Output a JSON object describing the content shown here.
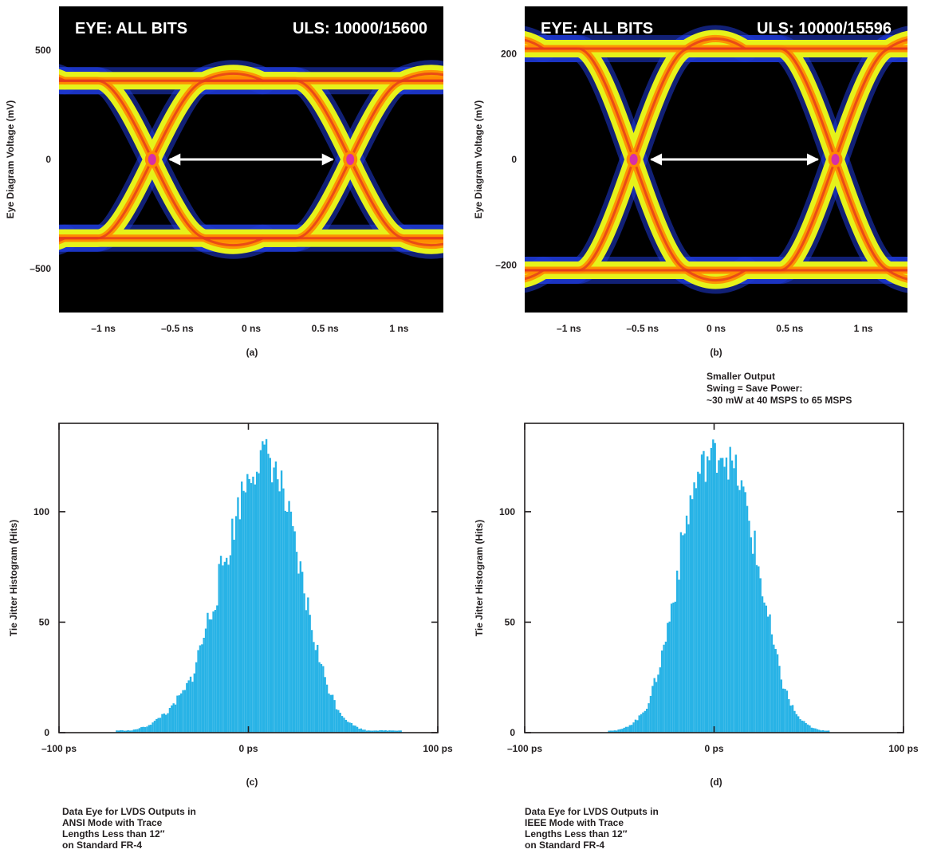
{
  "chart_data": [
    {
      "panel": "(a)",
      "type": "eye-diagram",
      "header_left": "EYE: ALL BITS",
      "header_right": "ULS: 10000/15600",
      "ylabel": "Eye Diagram Voltage (mV)",
      "ylim": [
        -700,
        700
      ],
      "xlim": [
        -1.3,
        1.3
      ],
      "y_ticks": [
        {
          "value": 500,
          "label": "500"
        },
        {
          "value": 0,
          "label": "0"
        },
        {
          "value": -500,
          "label": "–500"
        }
      ],
      "x_ticks": [
        {
          "value": -1,
          "label": "–1 ns"
        },
        {
          "value": -0.5,
          "label": "–0.5 ns"
        },
        {
          "value": 0,
          "label": "0 ns"
        },
        {
          "value": 0.5,
          "label": "0.5 ns"
        },
        {
          "value": 1,
          "label": "1 ns"
        }
      ],
      "levels_mV": [
        360,
        -360
      ],
      "crossings_ns": [
        -0.67,
        0.67
      ],
      "unit_interval_arrow_ns": [
        -0.67,
        0.67
      ]
    },
    {
      "panel": "(b)",
      "type": "eye-diagram",
      "header_left": "EYE: ALL BITS",
      "header_right": "ULS: 10000/15596",
      "ylabel": "Eye Diagram Voltage (mV)",
      "ylim": [
        -290,
        290
      ],
      "xlim": [
        -1.3,
        1.3
      ],
      "y_ticks": [
        {
          "value": 200,
          "label": "200"
        },
        {
          "value": 0,
          "label": "0"
        },
        {
          "value": -200,
          "label": "–200"
        }
      ],
      "x_ticks": [
        {
          "value": -1,
          "label": "–1 ns"
        },
        {
          "value": -0.5,
          "label": "–0.5 ns"
        },
        {
          "value": 0,
          "label": "0 ns"
        },
        {
          "value": 0.5,
          "label": "0.5 ns"
        },
        {
          "value": 1,
          "label": "1 ns"
        }
      ],
      "levels_mV": [
        210,
        -210
      ],
      "crossings_ns": [
        -0.56,
        0.81
      ],
      "unit_interval_arrow_ns": [
        -0.56,
        0.81
      ]
    },
    {
      "panel": "(c)",
      "type": "histogram",
      "ylabel": "Tie Jitter Histogram (Hits)",
      "xlim": [
        -100,
        100
      ],
      "ylim": [
        0,
        140
      ],
      "x_ticks": [
        {
          "value": -100,
          "label": "–100 ps"
        },
        {
          "value": 0,
          "label": "0 ps"
        },
        {
          "value": 100,
          "label": "100 ps"
        }
      ],
      "y_ticks": [
        {
          "value": 0,
          "label": "0"
        },
        {
          "value": 50,
          "label": "50"
        },
        {
          "value": 100,
          "label": "100"
        }
      ],
      "bin_width_ps": 2,
      "bins": [
        {
          "x": -70,
          "hits": 1
        },
        {
          "x": -66,
          "hits": 1
        },
        {
          "x": -62,
          "hits": 1
        },
        {
          "x": -58,
          "hits": 2
        },
        {
          "x": -54,
          "hits": 3
        },
        {
          "x": -50,
          "hits": 5
        },
        {
          "x": -46,
          "hits": 8
        },
        {
          "x": -42,
          "hits": 10
        },
        {
          "x": -38,
          "hits": 15
        },
        {
          "x": -34,
          "hits": 19
        },
        {
          "x": -30,
          "hits": 26
        },
        {
          "x": -26,
          "hits": 38
        },
        {
          "x": -22,
          "hits": 50
        },
        {
          "x": -18,
          "hits": 62
        },
        {
          "x": -14,
          "hits": 75
        },
        {
          "x": -10,
          "hits": 86
        },
        {
          "x": -6,
          "hits": 102
        },
        {
          "x": -2,
          "hits": 113
        },
        {
          "x": 2,
          "hits": 120
        },
        {
          "x": 6,
          "hits": 124
        },
        {
          "x": 10,
          "hits": 126
        },
        {
          "x": 14,
          "hits": 118
        },
        {
          "x": 18,
          "hits": 108
        },
        {
          "x": 22,
          "hits": 92
        },
        {
          "x": 26,
          "hits": 75
        },
        {
          "x": 30,
          "hits": 60
        },
        {
          "x": 34,
          "hits": 44
        },
        {
          "x": 38,
          "hits": 30
        },
        {
          "x": 42,
          "hits": 20
        },
        {
          "x": 46,
          "hits": 12
        },
        {
          "x": 50,
          "hits": 7
        },
        {
          "x": 54,
          "hits": 4
        },
        {
          "x": 58,
          "hits": 2
        },
        {
          "x": 62,
          "hits": 1
        },
        {
          "x": 66,
          "hits": 1
        },
        {
          "x": 74,
          "hits": 1
        },
        {
          "x": 80,
          "hits": 1
        }
      ],
      "caption": [
        "Data Eye for LVDS Outputs in",
        "ANSI Mode with Trace",
        "Lengths Less than 12″",
        "on Standard FR-4"
      ]
    },
    {
      "panel": "(d)",
      "type": "histogram",
      "ylabel": "Tie Jitter Histogram (Hits)",
      "xlim": [
        -100,
        100
      ],
      "ylim": [
        0,
        140
      ],
      "x_ticks": [
        {
          "value": -100,
          "label": "–100 ps"
        },
        {
          "value": 0,
          "label": "0 ps"
        },
        {
          "value": 100,
          "label": "100 ps"
        }
      ],
      "y_ticks": [
        {
          "value": 0,
          "label": "0"
        },
        {
          "value": 50,
          "label": "50"
        },
        {
          "value": 100,
          "label": "100"
        }
      ],
      "bin_width_ps": 2,
      "bins": [
        {
          "x": -56,
          "hits": 1
        },
        {
          "x": -52,
          "hits": 1
        },
        {
          "x": -48,
          "hits": 2
        },
        {
          "x": -44,
          "hits": 4
        },
        {
          "x": -40,
          "hits": 7
        },
        {
          "x": -36,
          "hits": 12
        },
        {
          "x": -32,
          "hits": 22
        },
        {
          "x": -28,
          "hits": 35
        },
        {
          "x": -24,
          "hits": 52
        },
        {
          "x": -20,
          "hits": 72
        },
        {
          "x": -16,
          "hits": 92
        },
        {
          "x": -12,
          "hits": 108
        },
        {
          "x": -8,
          "hits": 118
        },
        {
          "x": -4,
          "hits": 124
        },
        {
          "x": 0,
          "hits": 126
        },
        {
          "x": 4,
          "hits": 128
        },
        {
          "x": 8,
          "hits": 122
        },
        {
          "x": 12,
          "hits": 116
        },
        {
          "x": 16,
          "hits": 104
        },
        {
          "x": 20,
          "hits": 88
        },
        {
          "x": 24,
          "hits": 70
        },
        {
          "x": 28,
          "hits": 52
        },
        {
          "x": 32,
          "hits": 35
        },
        {
          "x": 36,
          "hits": 22
        },
        {
          "x": 40,
          "hits": 13
        },
        {
          "x": 44,
          "hits": 7
        },
        {
          "x": 48,
          "hits": 4
        },
        {
          "x": 52,
          "hits": 2
        },
        {
          "x": 56,
          "hits": 1
        },
        {
          "x": 60,
          "hits": 1
        }
      ],
      "annotation": [
        "Smaller Output",
        "Swing = Save Power:",
        "~30 mW at 40 MSPS to 65 MSPS"
      ],
      "caption": [
        "Data Eye for LVDS Outputs in",
        "IEEE Mode with Trace",
        "Lengths Less than 12″",
        "on Standard FR-4"
      ]
    }
  ],
  "colors": {
    "eye_background": "#000000",
    "eye_halo": "#1f3bd6",
    "eye_trace": "#e6f21a",
    "eye_core": "#ff8a00",
    "eye_center": "#e53a1c",
    "eye_crossing": "#d62fa8",
    "eye_arrow": "#ffffff",
    "histogram_bar": "#28b3e6",
    "axis": "#231f20"
  }
}
